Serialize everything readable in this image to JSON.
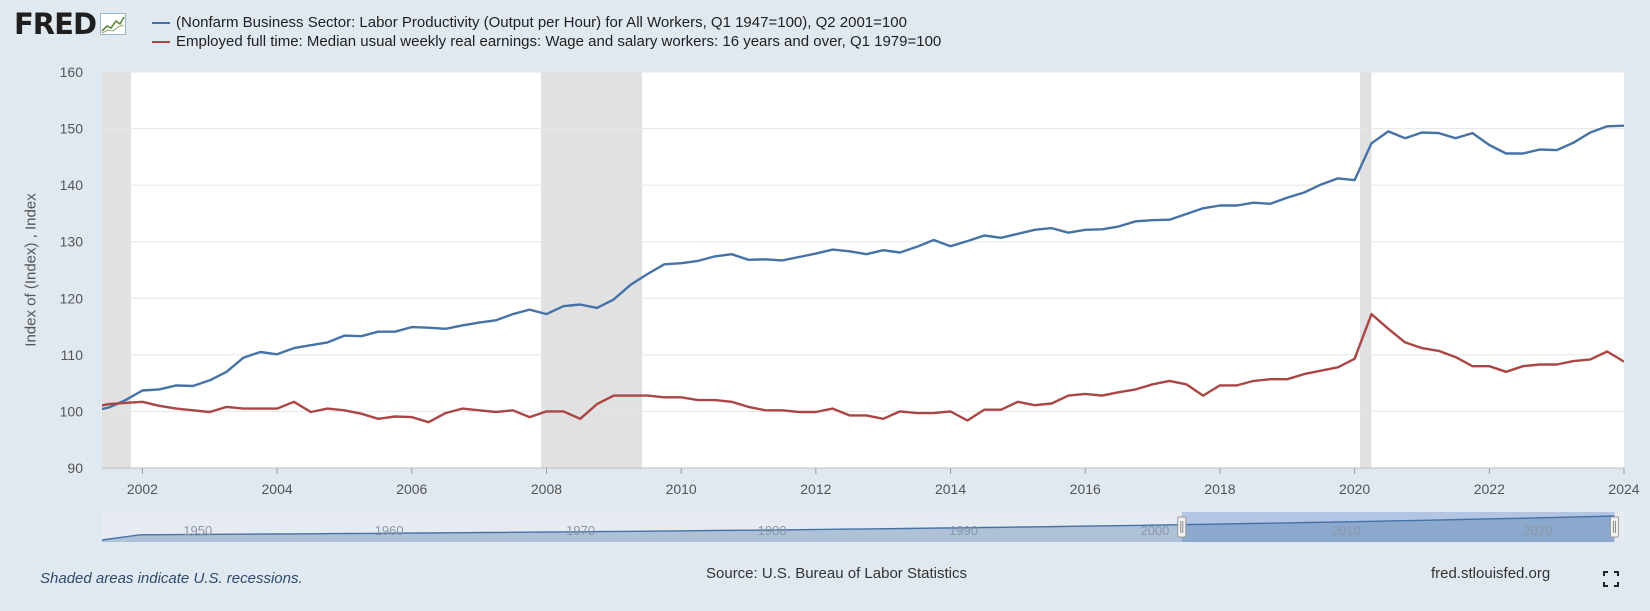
{
  "logo": {
    "text": "FRED"
  },
  "legend": [
    {
      "label": "(Nonfarm Business Sector: Labor Productivity (Output per Hour) for All Workers, Q1 1947=100), Q2 2001=100",
      "color": "#4572a7"
    },
    {
      "label": "Employed full time: Median usual weekly real earnings: Wage and salary workers: 16 years and over, Q1 1979=100",
      "color": "#aa4643"
    }
  ],
  "footer": {
    "note": "Shaded areas indicate U.S. recessions.",
    "source": "Source: U.S. Bureau of Labor Statistics",
    "site": "fred.stlouisfed.org"
  },
  "icons": {
    "fullscreen": "fullscreen-icon",
    "logo_graph": "chart-line-icon"
  },
  "chart_data": {
    "type": "line",
    "title": "",
    "xlabel": "",
    "ylabel": "Index of (Index) , Index",
    "x_start": 2001.25,
    "x_step": 0.25,
    "xlim": [
      2001.4,
      2024.0
    ],
    "ylim": [
      90,
      160
    ],
    "yticks": [
      90,
      100,
      110,
      120,
      130,
      140,
      150,
      160
    ],
    "xticks": [
      2002,
      2004,
      2006,
      2008,
      2010,
      2012,
      2014,
      2016,
      2018,
      2020,
      2022,
      2024
    ],
    "grid": true,
    "legend_position": "top",
    "recessions": [
      [
        2001.25,
        2001.83
      ],
      [
        2007.92,
        2009.42
      ],
      [
        2020.08,
        2020.25
      ]
    ],
    "series": [
      {
        "name": "(Nonfarm Business Sector: Labor Productivity (Output per Hour) for All Workers, Q1 1947=100), Q2 2001=100",
        "color": "#4572a7",
        "values": [
          100,
          100.7,
          102,
          103.7,
          103.9,
          104.6,
          104.5,
          105.5,
          107,
          109.5,
          110.5,
          110.1,
          111.2,
          111.7,
          112.2,
          113.4,
          113.3,
          114.1,
          114.1,
          114.9,
          114.8,
          114.6,
          115.2,
          115.7,
          116.1,
          117.2,
          118,
          117.2,
          118.6,
          118.9,
          118.3,
          119.8,
          122.4,
          124.3,
          126,
          126.2,
          126.6,
          127.4,
          127.8,
          126.8,
          126.9,
          126.7,
          127.3,
          127.9,
          128.6,
          128.3,
          127.8,
          128.5,
          128.1,
          129.1,
          130.3,
          129.2,
          130.1,
          131.1,
          130.7,
          131.4,
          132.1,
          132.4,
          131.6,
          132.1,
          132.2,
          132.7,
          133.6,
          133.8,
          133.9,
          134.9,
          135.9,
          136.4,
          136.4,
          136.9,
          136.7,
          137.8,
          138.7,
          140.1,
          141.2,
          140.9,
          147.4,
          149.5,
          148.3,
          149.3,
          149.2,
          148.3,
          149.2,
          147.1,
          145.6,
          145.6,
          146.3,
          146.2,
          147.5,
          149.3,
          150.4,
          150.5
        ]
      },
      {
        "name": "Employed full time: Median usual weekly real earnings: Wage and salary workers: 16 years and over, Q1 1979=100",
        "color": "#aa4643",
        "values": [
          100.7,
          101.3,
          101.5,
          101.7,
          101,
          100.5,
          100.2,
          99.9,
          100.8,
          100.5,
          100.5,
          100.5,
          101.7,
          99.9,
          100.5,
          100.2,
          99.6,
          98.7,
          99.1,
          99,
          98.1,
          99.7,
          100.5,
          100.2,
          99.9,
          100.2,
          99,
          100,
          100,
          98.7,
          101.3,
          102.8,
          102.8,
          102.8,
          102.5,
          102.5,
          102,
          102,
          101.7,
          100.8,
          100.2,
          100.2,
          99.9,
          99.9,
          100.5,
          99.3,
          99.3,
          98.7,
          100,
          99.7,
          99.7,
          100,
          98.4,
          100.3,
          100.3,
          101.7,
          101.1,
          101.4,
          102.8,
          103.1,
          102.8,
          103.4,
          103.9,
          104.8,
          105.4,
          104.8,
          102.8,
          104.6,
          104.6,
          105.4,
          105.7,
          105.7,
          106.6,
          107.2,
          107.8,
          109.3,
          117.2,
          114.6,
          112.2,
          111.2,
          110.7,
          109.6,
          108,
          108,
          107,
          108,
          108.3,
          108.3,
          108.9,
          109.2,
          110.6,
          108.8
        ]
      }
    ]
  },
  "navigator": {
    "labels": [
      "1950",
      "1960",
      "1970",
      "1980",
      "1990",
      "2000",
      "2010",
      "2020"
    ]
  }
}
